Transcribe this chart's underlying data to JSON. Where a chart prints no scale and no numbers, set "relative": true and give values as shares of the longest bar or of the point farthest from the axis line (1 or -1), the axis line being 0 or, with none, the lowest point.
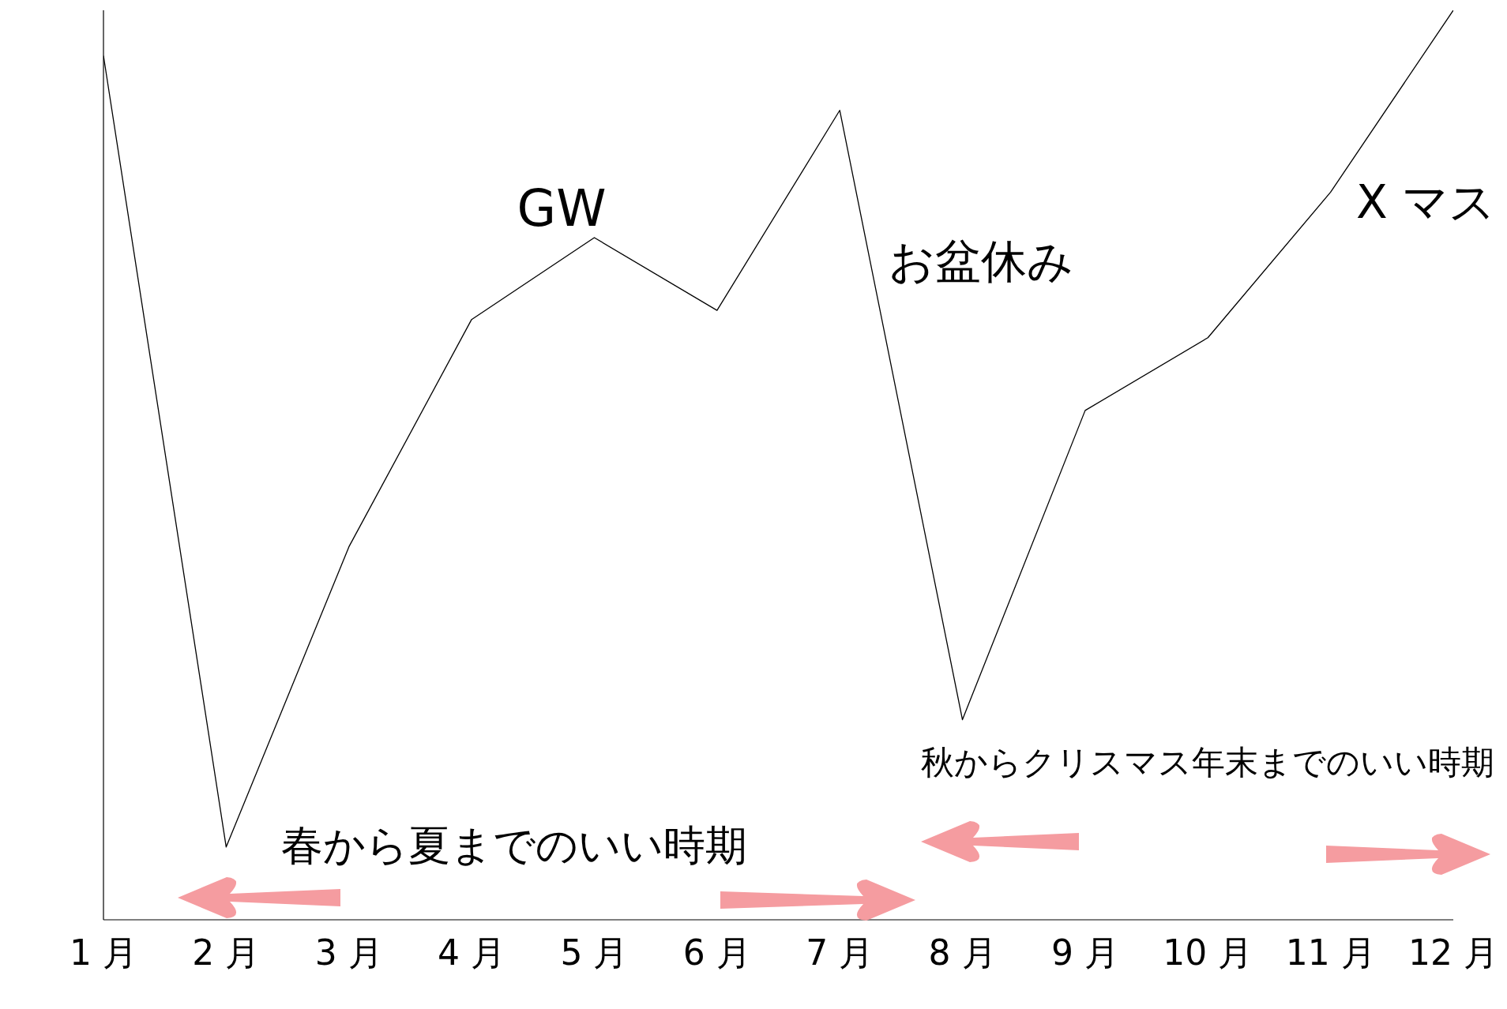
{
  "chart_data": {
    "type": "line",
    "relative": true,
    "categories": [
      "1 月",
      "2 月",
      "3 月",
      "4 月",
      "5 月",
      "6 月",
      "7 月",
      "8 月",
      "9 月",
      "10 月",
      "11 月",
      "12 月"
    ],
    "values": [
      0.95,
      0.08,
      0.41,
      0.66,
      0.75,
      0.67,
      0.89,
      0.22,
      0.56,
      0.64,
      0.8,
      1.0
    ],
    "color": "#000000",
    "marker": "none",
    "line_style": "solid",
    "annotations": [
      "GW",
      "お盆休み",
      "X マス",
      "春から夏までのいい時期",
      "秋からクリスマス年末までのいい時期"
    ]
  }
}
